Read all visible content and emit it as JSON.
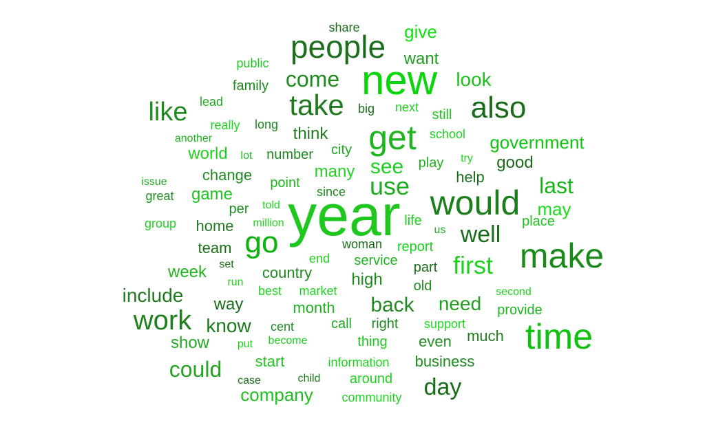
{
  "words": [
    {
      "text": "year",
      "color": "#1fc71f"
    },
    {
      "text": "new",
      "color": "#08d608"
    },
    {
      "text": "make",
      "color": "#1a8a1a"
    },
    {
      "text": "time",
      "color": "#10c010"
    },
    {
      "text": "would",
      "color": "#1a7f1a"
    },
    {
      "text": "get",
      "color": "#1fb51f"
    },
    {
      "text": "people",
      "color": "#1c6f1c"
    },
    {
      "text": "also",
      "color": "#1c6c1c"
    },
    {
      "text": "go",
      "color": "#11b311"
    },
    {
      "text": "take",
      "color": "#1f7a1f"
    },
    {
      "text": "work",
      "color": "#1f7f1f"
    },
    {
      "text": "like",
      "color": "#1f8a1f"
    },
    {
      "text": "first",
      "color": "#1fd11f"
    },
    {
      "text": "well",
      "color": "#186e18"
    },
    {
      "text": "use",
      "color": "#1fad1f"
    },
    {
      "text": "see",
      "color": "#1fd11f"
    },
    {
      "text": "day",
      "color": "#196f19"
    },
    {
      "text": "come",
      "color": "#1f8a1f"
    },
    {
      "text": "last",
      "color": "#18b418"
    },
    {
      "text": "back",
      "color": "#228b22"
    },
    {
      "text": "could",
      "color": "#22a322"
    },
    {
      "text": "need",
      "color": "#1fa11f"
    },
    {
      "text": "include",
      "color": "#1f7a1f"
    },
    {
      "text": "government",
      "color": "#11c311"
    },
    {
      "text": "look",
      "color": "#1fbf1f"
    },
    {
      "text": "give",
      "color": "#0ee30e"
    },
    {
      "text": "want",
      "color": "#1fa01f"
    },
    {
      "text": "company",
      "color": "#1fbf1f"
    },
    {
      "text": "know",
      "color": "#1a7a1a"
    },
    {
      "text": "week",
      "color": "#1fb51f"
    },
    {
      "text": "good",
      "color": "#1a6a1a"
    },
    {
      "text": "show",
      "color": "#22a822"
    },
    {
      "text": "may",
      "color": "#1fd91f"
    },
    {
      "text": "go",
      "color": "#11b311"
    },
    {
      "text": "way",
      "color": "#1a6e1a"
    },
    {
      "text": "high",
      "color": "#1f8a1f"
    },
    {
      "text": "business",
      "color": "#1f8a1f"
    },
    {
      "text": "even",
      "color": "#1f8a1f"
    },
    {
      "text": "month",
      "color": "#1fb01f"
    },
    {
      "text": "many",
      "color": "#22d122"
    },
    {
      "text": "change",
      "color": "#1f8a1f"
    },
    {
      "text": "game",
      "color": "#22c422"
    },
    {
      "text": "world",
      "color": "#1fd11f"
    },
    {
      "text": "think",
      "color": "#1f7a1f"
    },
    {
      "text": "home",
      "color": "#1f7a1f"
    },
    {
      "text": "team",
      "color": "#1a6e1a"
    },
    {
      "text": "much",
      "color": "#1f7f1f"
    },
    {
      "text": "place",
      "color": "#1fbf1f"
    },
    {
      "text": "help",
      "color": "#1a6e1a"
    },
    {
      "text": "play",
      "color": "#1fb01f"
    },
    {
      "text": "country",
      "color": "#1f8a1f"
    },
    {
      "text": "service",
      "color": "#1fb01f"
    },
    {
      "text": "part",
      "color": "#1a6e1a"
    },
    {
      "text": "old",
      "color": "#1f8a1f"
    },
    {
      "text": "provide",
      "color": "#1fb51f"
    },
    {
      "text": "start",
      "color": "#22c422"
    },
    {
      "text": "right",
      "color": "#1f8a1f"
    },
    {
      "text": "call",
      "color": "#1fa81f"
    },
    {
      "text": "thing",
      "color": "#22c422"
    },
    {
      "text": "family",
      "color": "#1f8a1f"
    },
    {
      "text": "per",
      "color": "#1f8a1f"
    },
    {
      "text": "report",
      "color": "#1fd11f"
    },
    {
      "text": "still",
      "color": "#22c422"
    },
    {
      "text": "city",
      "color": "#1fa81f"
    },
    {
      "text": "number",
      "color": "#1f8a1f"
    },
    {
      "text": "point",
      "color": "#1fb51f"
    },
    {
      "text": "since",
      "color": "#1f8a1f"
    },
    {
      "text": "life",
      "color": "#1fd11f"
    },
    {
      "text": "woman",
      "color": "#1a6e1a"
    },
    {
      "text": "information",
      "color": "#1fd11f"
    },
    {
      "text": "around",
      "color": "#1fd11f"
    },
    {
      "text": "community",
      "color": "#1fd11f"
    },
    {
      "text": "support",
      "color": "#1fd91f"
    },
    {
      "text": "market",
      "color": "#1fd11f"
    },
    {
      "text": "best",
      "color": "#1fd11f"
    },
    {
      "text": "end",
      "color": "#1fd11f"
    },
    {
      "text": "big",
      "color": "#1a6e1a"
    },
    {
      "text": "next",
      "color": "#22d122"
    },
    {
      "text": "long",
      "color": "#1f8a1f"
    },
    {
      "text": "school",
      "color": "#1fd11f"
    },
    {
      "text": "cent",
      "color": "#1f8a1f"
    },
    {
      "text": "child",
      "color": "#1f7a1f"
    },
    {
      "text": "share",
      "color": "#1a6e1a"
    },
    {
      "text": "public",
      "color": "#22c422"
    },
    {
      "text": "lead",
      "color": "#22a822"
    },
    {
      "text": "really",
      "color": "#22d122"
    },
    {
      "text": "another",
      "color": "#1fb51f"
    },
    {
      "text": "lot",
      "color": "#1fb51f"
    },
    {
      "text": "issue",
      "color": "#22a822"
    },
    {
      "text": "great",
      "color": "#1f8a1f"
    },
    {
      "text": "group",
      "color": "#22d122"
    },
    {
      "text": "told",
      "color": "#22d122"
    },
    {
      "text": "million",
      "color": "#22d122"
    },
    {
      "text": "us",
      "color": "#1fa81f"
    },
    {
      "text": "set",
      "color": "#1a6e1a"
    },
    {
      "text": "run",
      "color": "#1fd11f"
    },
    {
      "text": "put",
      "color": "#1fd11f"
    },
    {
      "text": "become",
      "color": "#1fd11f"
    },
    {
      "text": "case",
      "color": "#1a6e1a"
    },
    {
      "text": "second",
      "color": "#1fd11f"
    },
    {
      "text": "try",
      "color": "#22d122"
    }
  ]
}
